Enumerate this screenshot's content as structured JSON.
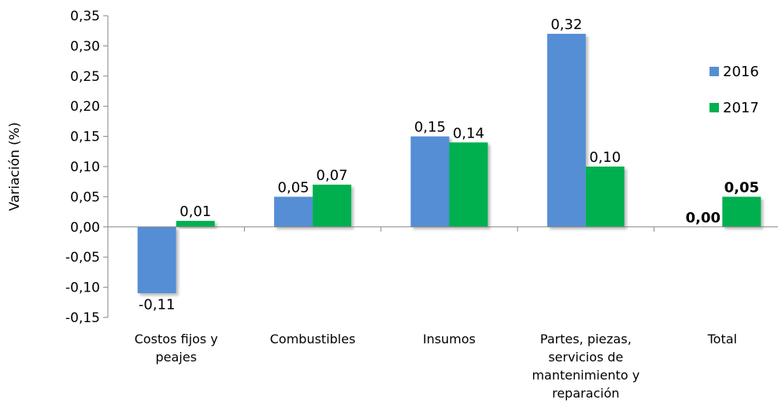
{
  "chart_data": {
    "type": "bar",
    "ylabel": "Variación (%)",
    "ylim": [
      -0.15,
      0.35
    ],
    "yticks": [
      "0,35",
      "0,30",
      "0,25",
      "0,20",
      "0,15",
      "0,10",
      "0,05",
      "0,00",
      "-0,05",
      "-0,10",
      "-0,15"
    ],
    "categories": [
      [
        "Costos fijos y",
        "peajes"
      ],
      [
        "Combustibles"
      ],
      [
        "Insumos"
      ],
      [
        "Partes, piezas,",
        "servicios de",
        "mantenimiento y",
        "reparación"
      ],
      [
        "Total"
      ]
    ],
    "series": [
      {
        "name": "2016",
        "color": "#558ed5",
        "values": [
          -0.11,
          0.05,
          0.15,
          0.32,
          0.0
        ],
        "labels": [
          "-0,11",
          "0,05",
          "0,15",
          "0,32",
          "0,00"
        ]
      },
      {
        "name": "2017",
        "color": "#00b050",
        "values": [
          0.01,
          0.07,
          0.14,
          0.1,
          0.05
        ],
        "labels": [
          "0,01",
          "0,07",
          "0,14",
          "0,10",
          "0,05"
        ]
      }
    ],
    "bold_category_index": 4,
    "grid": false,
    "legend_position": "right"
  }
}
